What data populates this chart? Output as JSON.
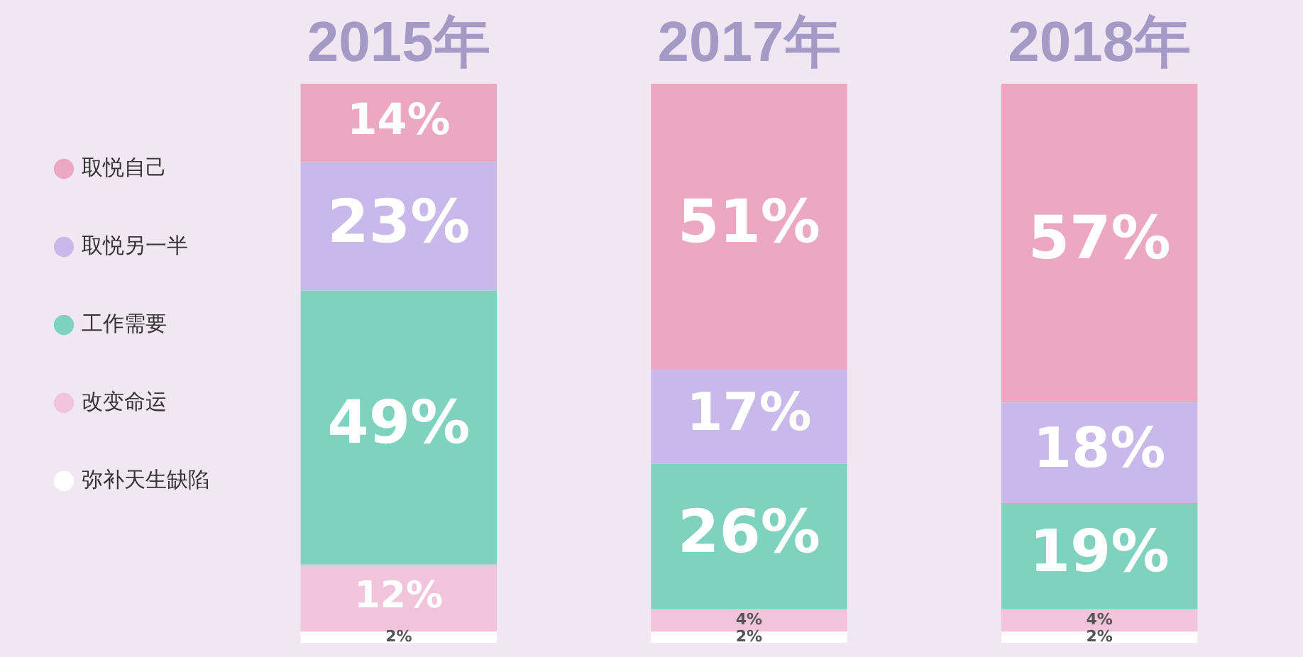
{
  "chart_data": {
    "type": "bar",
    "stacked": true,
    "categories": [
      "2015年",
      "2017年",
      "2018年"
    ],
    "legend": "left",
    "grid": false,
    "tick_labels": "x",
    "series": [
      {
        "name": "弥补天生缺陷",
        "color": "#ffffff",
        "values": [
          2,
          2,
          2
        ],
        "value_labels": [
          "2%",
          "2%",
          "2%"
        ]
      },
      {
        "name": "改变命运",
        "color": "#f2c4dc",
        "values": [
          12,
          4,
          4
        ],
        "value_labels": [
          "12%",
          "4%",
          "4%"
        ]
      },
      {
        "name": "工作需要",
        "color": "#7fd3be",
        "values": [
          49,
          26,
          19
        ],
        "value_labels": [
          "49%",
          "26%",
          "19%"
        ]
      },
      {
        "name": "取悦另一半",
        "color": "#c8b9ea",
        "values": [
          23,
          17,
          18
        ],
        "value_labels": [
          "23%",
          "17%",
          "18%"
        ]
      },
      {
        "name": "取悦自己",
        "color": "#eba8c0",
        "values": [
          14,
          51,
          57
        ],
        "value_labels": [
          "14%",
          "51%",
          "57%"
        ]
      }
    ]
  }
}
